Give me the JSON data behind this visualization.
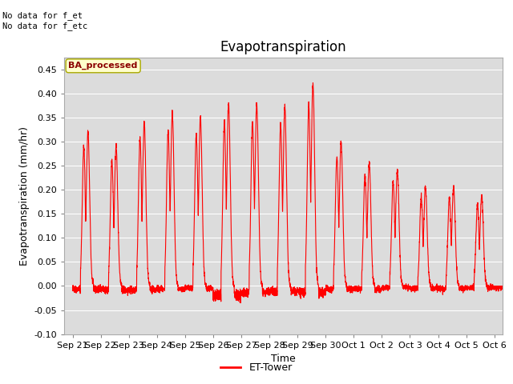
{
  "title": "Evapotranspiration",
  "ylabel": "Evapotranspiration (mm/hr)",
  "xlabel": "Time",
  "line_color": "#FF0000",
  "line_width": 0.8,
  "ylim": [
    -0.1,
    0.475
  ],
  "yticks": [
    -0.1,
    -0.05,
    0.0,
    0.05,
    0.1,
    0.15,
    0.2,
    0.25,
    0.3,
    0.35,
    0.4,
    0.45
  ],
  "fig_bg_color": "#FFFFFF",
  "plot_bg_color": "#DCDCDC",
  "annotation_top_left": "No data for f_et\nNo data for f_etc",
  "legend_label": "ET-Tower",
  "legend_box_label": "BA_processed",
  "legend_box_color": "#FFFFCC",
  "legend_box_edge_color": "#AAAA00",
  "tick_labels": [
    "Sep 21",
    "Sep 22",
    "Sep 23",
    "Sep 24",
    "Sep 25",
    "Sep 26",
    "Sep 27",
    "Sep 28",
    "Sep 29",
    "Sep 30",
    "Oct 1",
    "Oct 2",
    "Oct 3",
    "Oct 4",
    "Oct 5",
    "Oct 6"
  ],
  "num_days": 16,
  "points_per_day": 288,
  "daily_peaks": [
    0.32,
    0.29,
    0.34,
    0.36,
    0.35,
    0.38,
    0.38,
    0.375,
    0.42,
    0.3,
    0.255,
    0.24,
    0.205,
    0.205,
    0.19,
    0.0
  ],
  "daily_min": [
    -0.02,
    -0.025,
    -0.025,
    -0.02,
    -0.015,
    -0.06,
    -0.04,
    -0.035,
    -0.04,
    -0.02,
    -0.02,
    -0.01,
    -0.015,
    -0.015,
    -0.01,
    -0.01
  ],
  "grid_color": "#FFFFFF",
  "title_fontsize": 12,
  "axis_fontsize": 9,
  "tick_fontsize": 8
}
